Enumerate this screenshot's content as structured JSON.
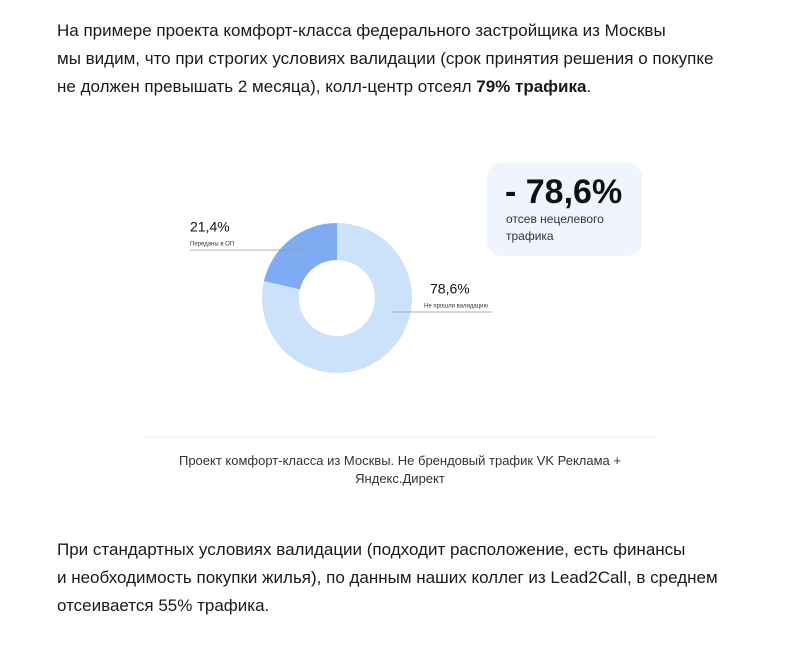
{
  "intro": {
    "lines": [
      [
        "На примере проекта комфорт-класса федерального застройщика из Москвы"
      ],
      [
        "мы видим, что при строгих условиях валидации (срок принятия решения о покупке"
      ],
      [
        "не должен превышать 2 месяца), колл-центр отсеял ",
        "79% трафика",
        "."
      ]
    ]
  },
  "chart_data": {
    "type": "donut",
    "categories": [
      "Переданы в ОП",
      "Не прошли валидацию"
    ],
    "values": [
      21.4,
      78.6
    ],
    "value_labels": [
      "21,4%",
      "78,6%"
    ],
    "colors": [
      "#7fabf2",
      "#cce2fb"
    ]
  },
  "callout": {
    "value": "- 78,6%",
    "lines": [
      "отсев нецелевого",
      "трафика"
    ]
  },
  "caption": {
    "lines": [
      "Проект комфорт-класса из Москвы. Не брендовый трафик VK Реклама +",
      "Яндекс.Директ"
    ]
  },
  "outro": {
    "lines": [
      "При стандартных условиях валидации (подходит расположение, есть финансы",
      "и необходимость покупки жилья), по данным наших коллег из Lead2Call, в среднем",
      "отсеивается 55% трафика."
    ]
  }
}
